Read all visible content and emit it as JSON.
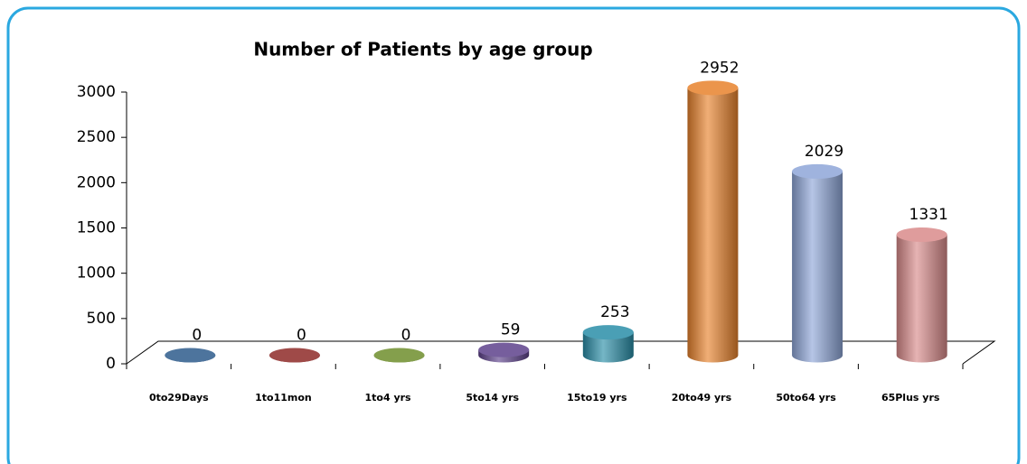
{
  "chart_data": {
    "type": "bar3d",
    "title": "Number of Patients by age group",
    "categories": [
      "0to29Days",
      "1to11mon",
      "1to4 yrs",
      "5to14 yrs",
      "15to19 yrs",
      "20to49 yrs",
      "50to64 yrs",
      "65Plus yrs"
    ],
    "values": [
      0,
      0,
      0,
      59,
      253,
      2952,
      2029,
      1331
    ],
    "colors": [
      "#2e5b8c",
      "#8e2a28",
      "#6e8e2c",
      "#5e428c",
      "#2a8ea8",
      "#e8822c",
      "#8ea6d8",
      "#d98a8a"
    ],
    "ylim": [
      0,
      3000
    ],
    "yticks": [
      0,
      500,
      1000,
      1500,
      2000,
      2500,
      3000
    ]
  }
}
